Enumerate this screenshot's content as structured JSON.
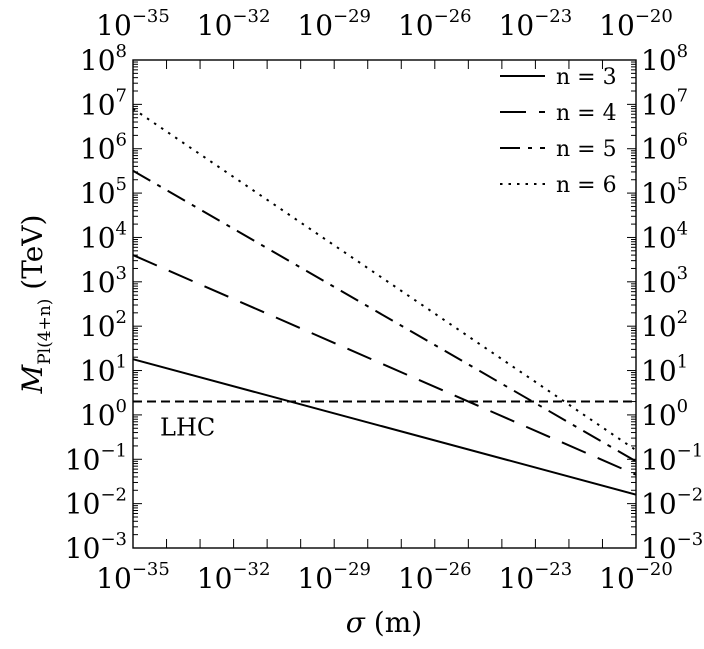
{
  "chart_data": {
    "type": "line",
    "x_scale": "log",
    "y_scale": "log",
    "xlabel": "σ (m)",
    "ylabel": "M_Pl(4+n) (TeV)",
    "xlim": [
      1e-35,
      1e-20
    ],
    "ylim": [
      0.001,
      100000000.0
    ],
    "x_ticks": [
      {
        "value": 1e-35,
        "base": "10",
        "exp": "−35"
      },
      {
        "value": 1e-32,
        "base": "10",
        "exp": "−32"
      },
      {
        "value": 1e-29,
        "base": "10",
        "exp": "−29"
      },
      {
        "value": 1e-26,
        "base": "10",
        "exp": "−26"
      },
      {
        "value": 1e-23,
        "base": "10",
        "exp": "−23"
      },
      {
        "value": 1e-20,
        "base": "10",
        "exp": "−20"
      }
    ],
    "y_ticks": [
      {
        "value": 100000000.0,
        "base": "10",
        "exp": "8"
      },
      {
        "value": 10000000.0,
        "base": "10",
        "exp": "7"
      },
      {
        "value": 1000000.0,
        "base": "10",
        "exp": "6"
      },
      {
        "value": 100000.0,
        "base": "10",
        "exp": "5"
      },
      {
        "value": 10000.0,
        "base": "10",
        "exp": "4"
      },
      {
        "value": 1000.0,
        "base": "10",
        "exp": "3"
      },
      {
        "value": 100.0,
        "base": "10",
        "exp": "2"
      },
      {
        "value": 10.0,
        "base": "10",
        "exp": "1"
      },
      {
        "value": 1.0,
        "base": "10",
        "exp": "0"
      },
      {
        "value": 0.1,
        "base": "10",
        "exp": "−1"
      },
      {
        "value": 0.01,
        "base": "10",
        "exp": "−2"
      },
      {
        "value": 0.001,
        "base": "10",
        "exp": "−3"
      }
    ],
    "series": [
      {
        "name": "n = 3",
        "style": "solid",
        "x": [
          1e-35,
          1e-20
        ],
        "y": [
          18,
          0.016
        ]
      },
      {
        "name": "n = 4",
        "style": "dashed",
        "x": [
          1e-35,
          1e-20
        ],
        "y": [
          4000,
          0.045
        ]
      },
      {
        "name": "n = 5",
        "style": "dashdot",
        "x": [
          1e-35,
          1e-20
        ],
        "y": [
          320000,
          0.09
        ]
      },
      {
        "name": "n = 6",
        "style": "dotted",
        "x": [
          1e-35,
          1e-20
        ],
        "y": [
          8000000,
          0.16
        ]
      }
    ],
    "reference_lines": [
      {
        "label": "LHC",
        "style": "dashed",
        "y": 2
      }
    ],
    "legend_position": "top-right",
    "grid": false,
    "mirror_axes": true
  }
}
